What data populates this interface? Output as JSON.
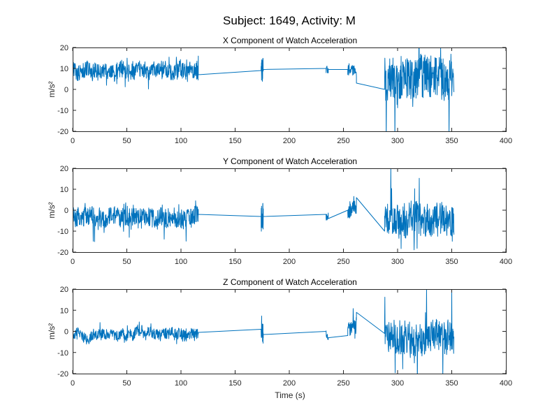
{
  "figure": {
    "suptitle": "Subject: 1649, Activity: M"
  },
  "chart_data": [
    {
      "type": "line",
      "title": "X Component of Watch Acceleration",
      "xlabel": "",
      "ylabel": "m/s²",
      "xlim": [
        0,
        400
      ],
      "ylim": [
        -20,
        20
      ],
      "xticks": [
        0,
        50,
        100,
        150,
        200,
        250,
        300,
        350,
        400
      ],
      "yticks": [
        -20,
        -10,
        0,
        10,
        20
      ],
      "grid": false,
      "line_color": "#0072BD",
      "segments": [
        {
          "x_range": [
            0,
            116
          ],
          "baseline": 9,
          "noise": 4.0,
          "spike": 6,
          "step": 0.25
        },
        {
          "x_range": [
            174,
            176
          ],
          "baseline": 9,
          "noise": 6,
          "spike": 6,
          "step": 0.1
        },
        {
          "x_range": [
            234,
            236
          ],
          "baseline": 9.5,
          "noise": 1.5,
          "spike": 1,
          "step": 0.2
        },
        {
          "x_range": [
            254,
            262
          ],
          "baseline": 9,
          "noise": 3,
          "spike": 2,
          "step": 0.2
        },
        {
          "x_range": [
            288,
            352
          ],
          "baseline": 5,
          "noise": 10,
          "spike": 25,
          "step": 0.25
        }
      ],
      "connections": [
        {
          "x": [
            116,
            174
          ],
          "y": [
            7,
            9
          ]
        },
        {
          "x": [
            176,
            234
          ],
          "y": [
            9.5,
            10
          ]
        },
        {
          "x": [
            236,
            254
          ],
          "y": [
            9.5,
            9.5
          ]
        },
        {
          "x": [
            262,
            288
          ],
          "y": [
            3,
            0
          ]
        }
      ]
    },
    {
      "type": "line",
      "title": "Y Component of Watch Acceleration",
      "xlabel": "",
      "ylabel": "m/s²",
      "xlim": [
        0,
        400
      ],
      "ylim": [
        -20,
        20
      ],
      "xticks": [
        0,
        50,
        100,
        150,
        200,
        250,
        300,
        350,
        400
      ],
      "yticks": [
        -20,
        -10,
        0,
        10,
        20
      ],
      "grid": false,
      "line_color": "#0072BD",
      "segments": [
        {
          "x_range": [
            0,
            116
          ],
          "baseline": -3,
          "noise": 4.5,
          "spike": 9,
          "step": 0.25
        },
        {
          "x_range": [
            174,
            176
          ],
          "baseline": -3,
          "noise": 7,
          "spike": 8,
          "step": 0.1
        },
        {
          "x_range": [
            234,
            236
          ],
          "baseline": -3,
          "noise": 2,
          "spike": 2,
          "step": 0.2
        },
        {
          "x_range": [
            254,
            262
          ],
          "baseline": 0,
          "noise": 4,
          "spike": 4,
          "step": 0.2
        },
        {
          "x_range": [
            288,
            352
          ],
          "baseline": -5,
          "noise": 8,
          "spike": 25,
          "step": 0.25
        }
      ],
      "connections": [
        {
          "x": [
            116,
            174
          ],
          "y": [
            -2,
            -3
          ]
        },
        {
          "x": [
            176,
            234
          ],
          "y": [
            -3,
            -2
          ]
        },
        {
          "x": [
            236,
            254
          ],
          "y": [
            -4,
            0
          ]
        },
        {
          "x": [
            262,
            288
          ],
          "y": [
            6,
            -10
          ]
        }
      ]
    },
    {
      "type": "line",
      "title": "Z Component of Watch Acceleration",
      "xlabel": "Time (s)",
      "ylabel": "m/s²",
      "xlim": [
        0,
        400
      ],
      "ylim": [
        -20,
        20
      ],
      "xticks": [
        0,
        50,
        100,
        150,
        200,
        250,
        300,
        350,
        400
      ],
      "yticks": [
        -20,
        -10,
        0,
        10,
        20
      ],
      "grid": false,
      "line_color": "#0072BD",
      "segments": [
        {
          "x_range": [
            0,
            116
          ],
          "baseline": -1.5,
          "noise": 2.5,
          "spike": 5,
          "step": 0.25
        },
        {
          "x_range": [
            174,
            176
          ],
          "baseline": -1,
          "noise": 5,
          "spike": 6,
          "step": 0.1
        },
        {
          "x_range": [
            234,
            236
          ],
          "baseline": -2,
          "noise": 2,
          "spike": 1,
          "step": 0.2
        },
        {
          "x_range": [
            254,
            262
          ],
          "baseline": 2,
          "noise": 4,
          "spike": 6,
          "step": 0.2
        },
        {
          "x_range": [
            288,
            352
          ],
          "baseline": -3,
          "noise": 8,
          "spike": 25,
          "step": 0.25
        }
      ],
      "connections": [
        {
          "x": [
            116,
            174
          ],
          "y": [
            -0.5,
            1
          ]
        },
        {
          "x": [
            176,
            234
          ],
          "y": [
            -1.5,
            0
          ]
        },
        {
          "x": [
            236,
            254
          ],
          "y": [
            -3,
            -2
          ]
        },
        {
          "x": [
            262,
            288
          ],
          "y": [
            9,
            -1
          ]
        }
      ]
    }
  ]
}
